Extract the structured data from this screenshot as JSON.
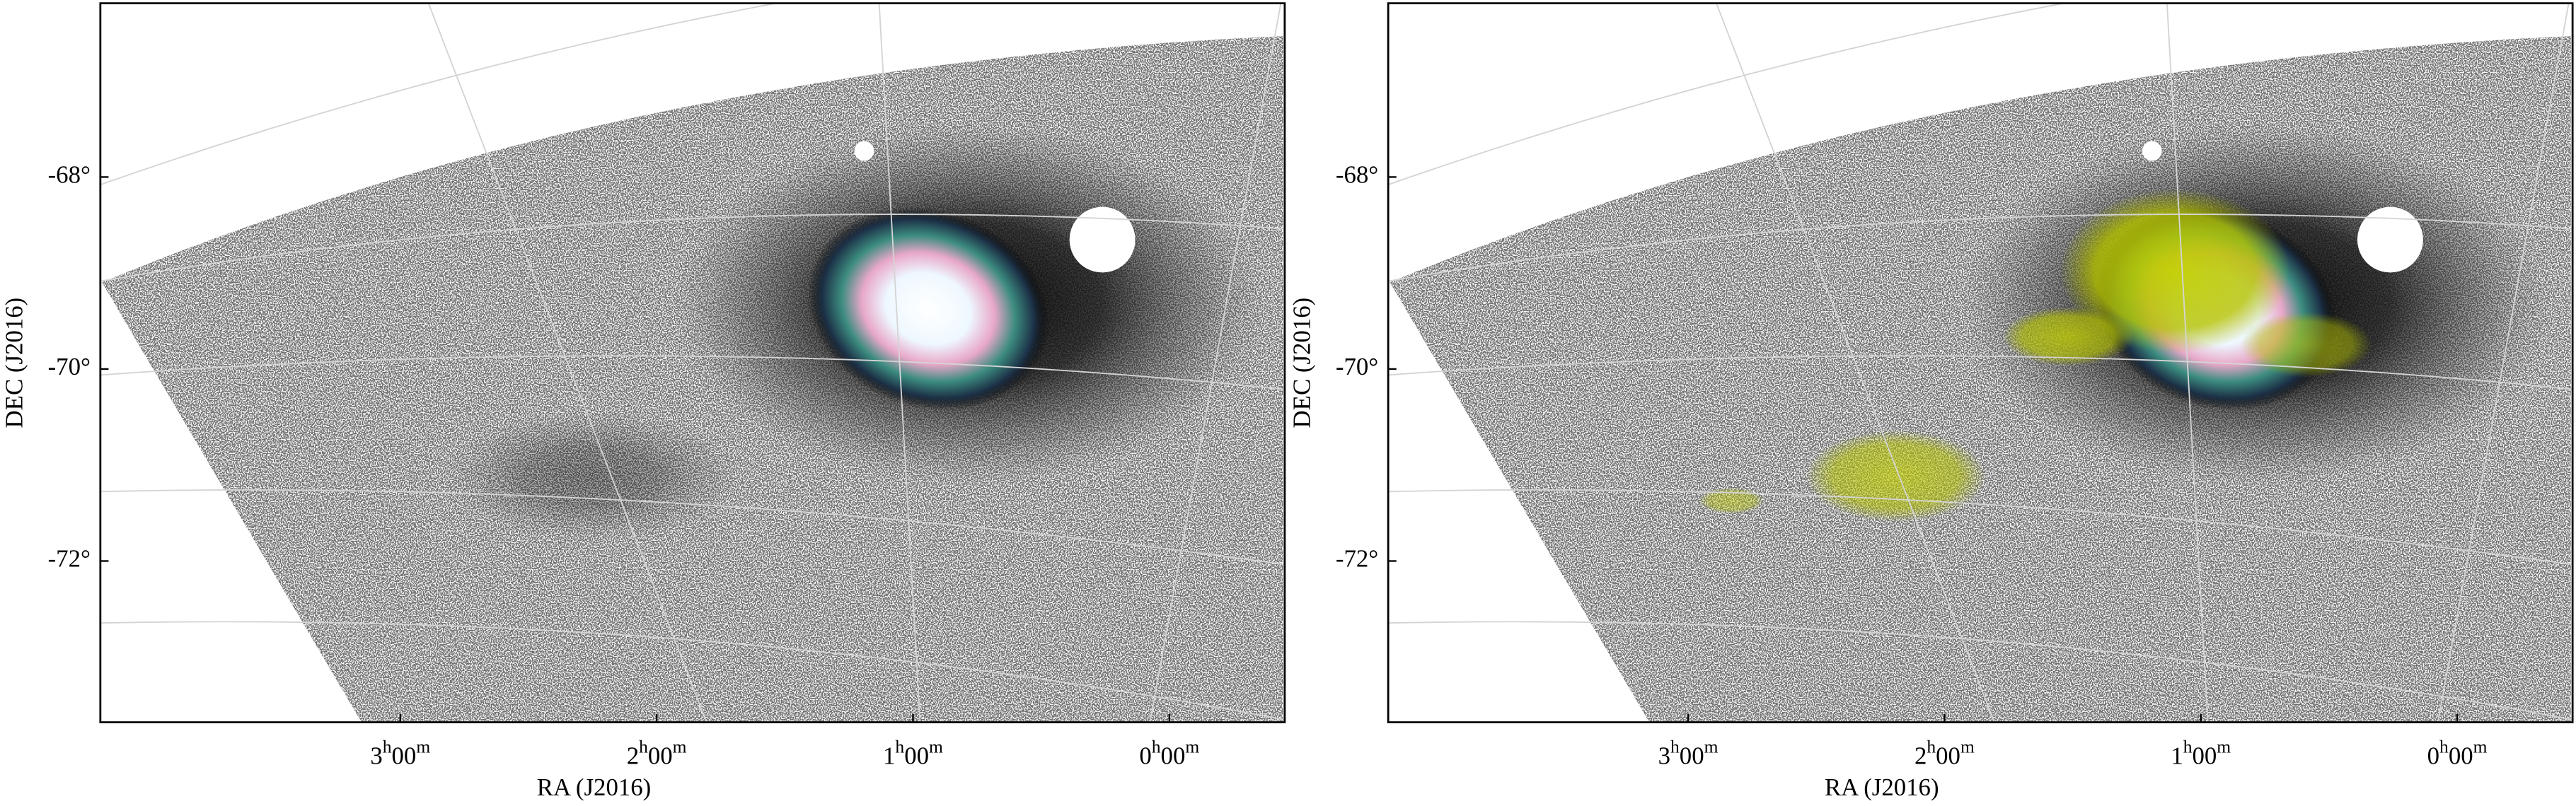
{
  "chart_data": [
    {
      "type": "map",
      "xlabel": "RA (J2016)",
      "ylabel": "DEC (J2016)",
      "xlim": [
        4.17,
        -0.45
      ],
      "ylim": [
        -73.68,
        -66.19
      ],
      "xticks": [
        {
          "value": 3,
          "label": "3h00m"
        },
        {
          "value": 2,
          "label": "2h00m"
        },
        {
          "value": 1,
          "label": "1h00m"
        },
        {
          "value": 0,
          "label": "0h00m"
        }
      ],
      "yticks": [
        {
          "value": -68,
          "label": "-68°"
        },
        {
          "value": -70,
          "label": "-70°"
        },
        {
          "value": -72,
          "label": "-72°"
        }
      ]
    },
    {
      "type": "map",
      "xlabel": "RA (J2016)",
      "ylabel": "DEC (J2016)",
      "xlim": [
        4.17,
        -0.45
      ],
      "ylim": [
        -73.68,
        -66.19
      ],
      "xticks": [
        {
          "value": 3,
          "label": "3h00m"
        },
        {
          "value": 2,
          "label": "2h00m"
        },
        {
          "value": 1,
          "label": "1h00m"
        },
        {
          "value": 0,
          "label": "0h00m"
        }
      ],
      "yticks": [
        {
          "value": -68,
          "label": "-68°"
        },
        {
          "value": -70,
          "label": "-70°"
        },
        {
          "value": -72,
          "label": "-72°"
        }
      ]
    }
  ]
}
